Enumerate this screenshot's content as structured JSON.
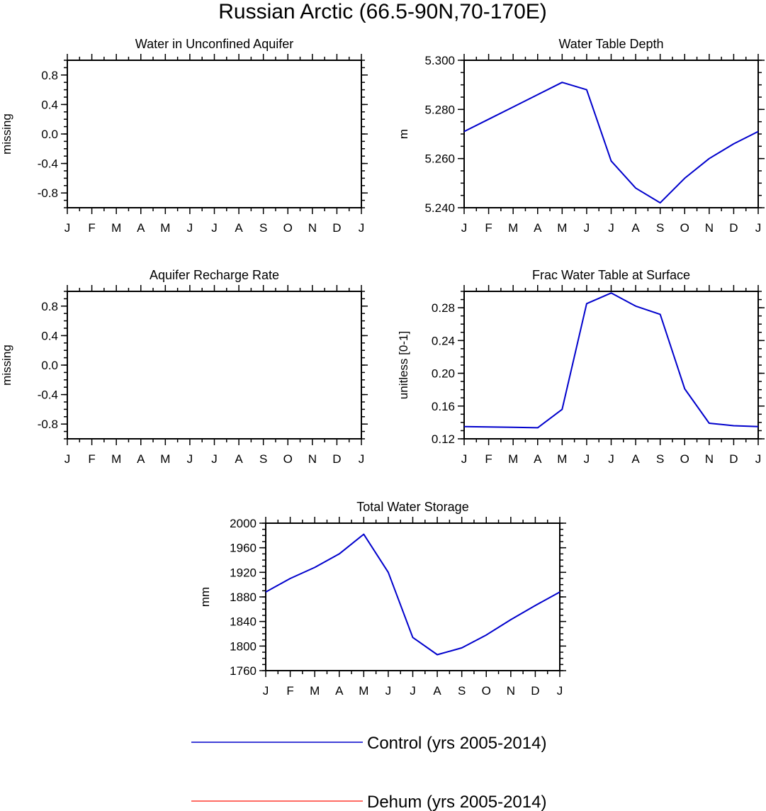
{
  "title": "Russian Arctic (66.5-90N,70-170E)",
  "legend": [
    {
      "label": "Control (yrs 2005-2014)",
      "color": "#0000cc"
    },
    {
      "label": "Dehum (yrs 2005-2014)",
      "color": "#ff3b30"
    }
  ],
  "chart_data": [
    {
      "type": "line",
      "title": "Water in Unconfined Aquifer",
      "xlabel": "",
      "ylabel": "missing",
      "categories": [
        "J",
        "F",
        "M",
        "A",
        "M",
        "J",
        "J",
        "A",
        "S",
        "O",
        "N",
        "D",
        "J"
      ],
      "ylim": [
        -1.0,
        1.0
      ],
      "yticks": [
        -0.8,
        -0.4,
        0.0,
        0.4,
        0.8
      ],
      "ytick_labels": [
        "-0.8",
        "-0.4",
        "0.0",
        "0.4",
        "0.8"
      ],
      "series": []
    },
    {
      "type": "line",
      "title": "Water Table Depth",
      "xlabel": "",
      "ylabel": "m",
      "categories": [
        "J",
        "F",
        "M",
        "A",
        "M",
        "J",
        "J",
        "A",
        "S",
        "O",
        "N",
        "D",
        "J"
      ],
      "ylim": [
        5.24,
        5.3
      ],
      "yticks": [
        5.24,
        5.26,
        5.28,
        5.3
      ],
      "ytick_labels": [
        "5.240",
        "5.260",
        "5.280",
        "5.300"
      ],
      "series": [
        {
          "name": "Control (yrs 2005-2014)",
          "color": "#0000cc",
          "values": [
            5.271,
            5.276,
            5.281,
            5.286,
            5.291,
            5.288,
            5.259,
            5.248,
            5.242,
            5.252,
            5.26,
            5.266,
            5.271
          ]
        }
      ]
    },
    {
      "type": "line",
      "title": "Aquifer Recharge Rate",
      "xlabel": "",
      "ylabel": "missing",
      "categories": [
        "J",
        "F",
        "M",
        "A",
        "M",
        "J",
        "J",
        "A",
        "S",
        "O",
        "N",
        "D",
        "J"
      ],
      "ylim": [
        -1.0,
        1.0
      ],
      "yticks": [
        -0.8,
        -0.4,
        0.0,
        0.4,
        0.8
      ],
      "ytick_labels": [
        "-0.8",
        "-0.4",
        "0.0",
        "0.4",
        "0.8"
      ],
      "series": []
    },
    {
      "type": "line",
      "title": "Frac Water Table at Surface",
      "xlabel": "",
      "ylabel": "unitless [0-1]",
      "categories": [
        "J",
        "F",
        "M",
        "A",
        "M",
        "J",
        "J",
        "A",
        "S",
        "O",
        "N",
        "D",
        "J"
      ],
      "ylim": [
        0.12,
        0.3
      ],
      "yticks": [
        0.12,
        0.16,
        0.2,
        0.24,
        0.28
      ],
      "ytick_labels": [
        "0.12",
        "0.16",
        "0.20",
        "0.24",
        "0.28"
      ],
      "series": [
        {
          "name": "Control (yrs 2005-2014)",
          "color": "#0000cc",
          "values": [
            0.135,
            0.1345,
            0.134,
            0.1335,
            0.156,
            0.285,
            0.298,
            0.282,
            0.272,
            0.181,
            0.139,
            0.136,
            0.135
          ]
        }
      ]
    },
    {
      "type": "line",
      "title": "Total Water Storage",
      "xlabel": "",
      "ylabel": "mm",
      "categories": [
        "J",
        "F",
        "M",
        "A",
        "M",
        "J",
        "J",
        "A",
        "S",
        "O",
        "N",
        "D",
        "J"
      ],
      "ylim": [
        1760,
        2000
      ],
      "yticks": [
        1760,
        1800,
        1840,
        1880,
        1920,
        1960,
        2000
      ],
      "ytick_labels": [
        "1760",
        "1800",
        "1840",
        "1880",
        "1920",
        "1960",
        "2000"
      ],
      "series": [
        {
          "name": "Control (yrs 2005-2014)",
          "color": "#0000cc",
          "values": [
            1888,
            1910,
            1928,
            1950,
            1982,
            1920,
            1814,
            1786,
            1797,
            1818,
            1843,
            1866,
            1888
          ]
        }
      ]
    }
  ]
}
